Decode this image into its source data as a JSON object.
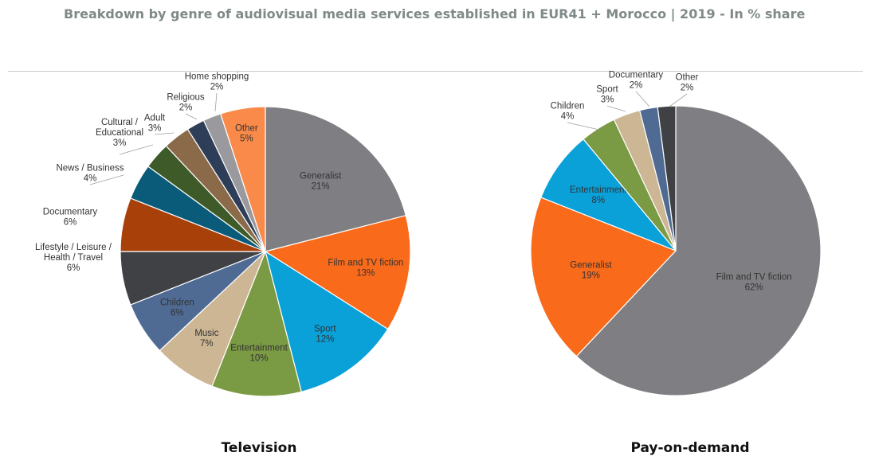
{
  "title": "Breakdown by genre of audiovisual media services established in EUR41 + Morocco | 2019 - In % share",
  "chart_data": [
    {
      "type": "pie",
      "name": "Television",
      "start_angle_deg": 0,
      "slices": [
        {
          "label": "Generalist",
          "pct_label": "21%",
          "value": 21,
          "color": "#7f7f83"
        },
        {
          "label": "Film and TV fiction",
          "pct_label": "13%",
          "value": 13,
          "color": "#f96a1b"
        },
        {
          "label": "Sport",
          "pct_label": "12%",
          "value": 12,
          "color": "#0aa0d8"
        },
        {
          "label": "Entertainment",
          "pct_label": "10%",
          "value": 10,
          "color": "#7a9a44"
        },
        {
          "label": "Music",
          "pct_label": "7%",
          "value": 7,
          "color": "#cdb693"
        },
        {
          "label": "Children",
          "pct_label": "6%",
          "value": 6,
          "color": "#4f6b94"
        },
        {
          "label": "Lifestyle / Leisure / Health / Travel",
          "pct_label": "6%",
          "value": 6,
          "color": "#404144"
        },
        {
          "label": "Documentary",
          "pct_label": "6%",
          "value": 6,
          "color": "#a8400a"
        },
        {
          "label": "News / Business",
          "pct_label": "4%",
          "value": 4,
          "color": "#0a5a7a"
        },
        {
          "label": "Cultural / Educational",
          "pct_label": "3%",
          "value": 3,
          "color": "#3d5a28"
        },
        {
          "label": "Adult",
          "pct_label": "3%",
          "value": 3,
          "color": "#8a6a48"
        },
        {
          "label": "Religious",
          "pct_label": "2%",
          "value": 2,
          "color": "#2e3e58"
        },
        {
          "label": "Home shopping",
          "pct_label": "2%",
          "value": 2,
          "color": "#9a9a9e"
        },
        {
          "label": "Other",
          "pct_label": "5%",
          "value": 5,
          "color": "#f98a4a"
        }
      ]
    },
    {
      "type": "pie",
      "name": "Pay-on-demand",
      "start_angle_deg": 0,
      "slices": [
        {
          "label": "Film and TV fiction",
          "pct_label": "62%",
          "value": 62,
          "color": "#7f7f83"
        },
        {
          "label": "Generalist",
          "pct_label": "19%",
          "value": 19,
          "color": "#f96a1b"
        },
        {
          "label": "Entertainment",
          "pct_label": "8%",
          "value": 8,
          "color": "#0aa0d8"
        },
        {
          "label": "Children",
          "pct_label": "4%",
          "value": 4,
          "color": "#7a9a44"
        },
        {
          "label": "Sport",
          "pct_label": "3%",
          "value": 3,
          "color": "#cdb693"
        },
        {
          "label": "Documentary",
          "pct_label": "2%",
          "value": 2,
          "color": "#4f6b94"
        },
        {
          "label": "Other",
          "pct_label": "2%",
          "value": 2,
          "color": "#404144"
        }
      ]
    }
  ]
}
